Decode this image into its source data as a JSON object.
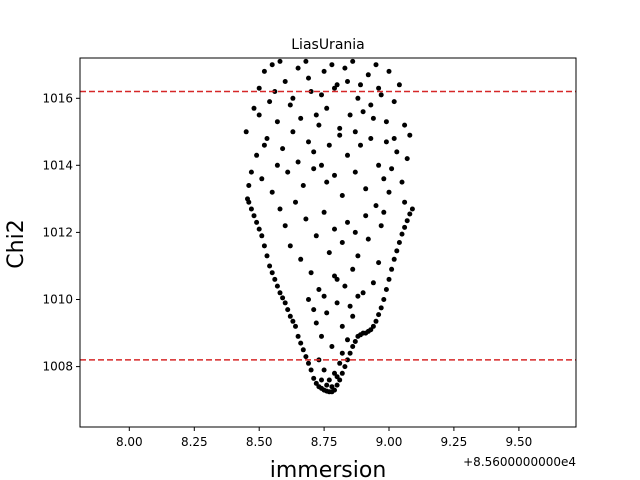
{
  "chart_data": {
    "type": "scatter",
    "title": "LiasUrania",
    "xlabel": "immersion",
    "ylabel": "Chi2",
    "x_offset_label": "+8.5600000000e4",
    "xlim": [
      7.81,
      9.72
    ],
    "ylim": [
      1006.2,
      1017.2
    ],
    "x_ticks": [
      8.0,
      8.25,
      8.5,
      8.75,
      9.0,
      9.25,
      9.5
    ],
    "x_tick_labels": [
      "8.00",
      "8.25",
      "8.50",
      "8.75",
      "9.00",
      "9.25",
      "9.50"
    ],
    "y_ticks": [
      1008,
      1010,
      1012,
      1014,
      1016
    ],
    "y_tick_labels": [
      "1008",
      "1010",
      "1012",
      "1014",
      "1016"
    ],
    "hlines": [
      {
        "y": 1008.2,
        "color": "#d62728",
        "style": "dashed"
      },
      {
        "y": 1016.2,
        "color": "#d62728",
        "style": "dashed"
      }
    ],
    "point_color": "#000000",
    "grid": false,
    "lower_envelope": [
      [
        8.45,
        1013.1
      ],
      [
        8.48,
        1012.5
      ],
      [
        8.52,
        1011.6
      ],
      [
        8.56,
        1010.6
      ],
      [
        8.6,
        1009.9
      ],
      [
        8.64,
        1009.2
      ],
      [
        8.68,
        1008.4
      ],
      [
        8.71,
        1007.6
      ],
      [
        8.74,
        1007.35
      ],
      [
        8.78,
        1007.25
      ],
      [
        8.81,
        1007.6
      ],
      [
        8.85,
        1008.4
      ],
      [
        8.88,
        1008.9
      ],
      [
        8.92,
        1009.0
      ],
      [
        8.95,
        1009.3
      ],
      [
        8.98,
        1010.0
      ],
      [
        9.01,
        1011.0
      ],
      [
        9.05,
        1012.0
      ],
      [
        9.09,
        1012.7
      ]
    ],
    "points": [
      [
        8.455,
        1013.0
      ],
      [
        8.46,
        1012.9
      ],
      [
        8.47,
        1012.7
      ],
      [
        8.48,
        1012.5
      ],
      [
        8.49,
        1012.3
      ],
      [
        8.5,
        1012.1
      ],
      [
        8.51,
        1011.9
      ],
      [
        8.52,
        1011.6
      ],
      [
        8.53,
        1011.3
      ],
      [
        8.54,
        1011.0
      ],
      [
        8.55,
        1010.8
      ],
      [
        8.56,
        1010.6
      ],
      [
        8.57,
        1010.4
      ],
      [
        8.58,
        1010.2
      ],
      [
        8.59,
        1010.05
      ],
      [
        8.6,
        1009.9
      ],
      [
        8.61,
        1009.7
      ],
      [
        8.62,
        1009.5
      ],
      [
        8.63,
        1009.35
      ],
      [
        8.64,
        1009.2
      ],
      [
        8.65,
        1008.9
      ],
      [
        8.66,
        1008.7
      ],
      [
        8.67,
        1008.5
      ],
      [
        8.68,
        1008.3
      ],
      [
        8.69,
        1008.1
      ],
      [
        8.7,
        1007.9
      ],
      [
        8.71,
        1007.65
      ],
      [
        8.72,
        1007.5
      ],
      [
        8.73,
        1007.4
      ],
      [
        8.74,
        1007.35
      ],
      [
        8.75,
        1007.3
      ],
      [
        8.76,
        1007.27
      ],
      [
        8.77,
        1007.25
      ],
      [
        8.78,
        1007.25
      ],
      [
        8.79,
        1007.3
      ],
      [
        8.8,
        1007.45
      ],
      [
        8.81,
        1007.6
      ],
      [
        8.82,
        1007.8
      ],
      [
        8.83,
        1008.0
      ],
      [
        8.84,
        1008.2
      ],
      [
        8.85,
        1008.4
      ],
      [
        8.86,
        1008.6
      ],
      [
        8.87,
        1008.75
      ],
      [
        8.88,
        1008.9
      ],
      [
        8.89,
        1008.95
      ],
      [
        8.9,
        1009.0
      ],
      [
        8.91,
        1009.0
      ],
      [
        8.92,
        1009.05
      ],
      [
        8.93,
        1009.1
      ],
      [
        8.94,
        1009.2
      ],
      [
        8.95,
        1009.35
      ],
      [
        8.96,
        1009.55
      ],
      [
        8.97,
        1009.75
      ],
      [
        8.98,
        1010.0
      ],
      [
        8.99,
        1010.3
      ],
      [
        9.0,
        1010.6
      ],
      [
        9.01,
        1010.9
      ],
      [
        9.02,
        1011.2
      ],
      [
        9.03,
        1011.45
      ],
      [
        9.04,
        1011.7
      ],
      [
        9.05,
        1011.95
      ],
      [
        9.06,
        1012.15
      ],
      [
        9.07,
        1012.35
      ],
      [
        9.08,
        1012.55
      ],
      [
        9.09,
        1012.7
      ],
      [
        8.46,
        1013.4
      ],
      [
        8.47,
        1013.8
      ],
      [
        8.45,
        1015.0
      ],
      [
        8.48,
        1015.7
      ],
      [
        8.5,
        1016.3
      ],
      [
        8.52,
        1016.8
      ],
      [
        8.55,
        1017.0
      ],
      [
        8.58,
        1017.1
      ],
      [
        8.6,
        1016.5
      ],
      [
        8.62,
        1015.8
      ],
      [
        8.65,
        1016.9
      ],
      [
        8.68,
        1017.1
      ],
      [
        8.7,
        1016.2
      ],
      [
        8.72,
        1015.5
      ],
      [
        8.75,
        1016.8
      ],
      [
        8.78,
        1017.0
      ],
      [
        8.8,
        1016.4
      ],
      [
        8.83,
        1016.9
      ],
      [
        8.86,
        1017.1
      ],
      [
        8.88,
        1016.0
      ],
      [
        8.9,
        1015.6
      ],
      [
        8.92,
        1016.7
      ],
      [
        8.95,
        1017.0
      ],
      [
        8.97,
        1016.1
      ],
      [
        9.0,
        1016.8
      ],
      [
        9.02,
        1015.9
      ],
      [
        9.04,
        1016.4
      ],
      [
        9.06,
        1015.2
      ],
      [
        9.08,
        1014.9
      ],
      [
        9.07,
        1014.2
      ],
      [
        8.49,
        1014.3
      ],
      [
        8.51,
        1013.6
      ],
      [
        8.53,
        1014.8
      ],
      [
        8.55,
        1013.2
      ],
      [
        8.57,
        1015.3
      ],
      [
        8.59,
        1014.5
      ],
      [
        8.61,
        1013.8
      ],
      [
        8.63,
        1015.0
      ],
      [
        8.65,
        1014.1
      ],
      [
        8.67,
        1013.4
      ],
      [
        8.69,
        1014.7
      ],
      [
        8.71,
        1013.9
      ],
      [
        8.73,
        1015.2
      ],
      [
        8.74,
        1014.0
      ],
      [
        8.76,
        1013.5
      ],
      [
        8.77,
        1014.6
      ],
      [
        8.79,
        1013.7
      ],
      [
        8.81,
        1014.9
      ],
      [
        8.82,
        1013.1
      ],
      [
        8.84,
        1014.3
      ],
      [
        8.85,
        1015.5
      ],
      [
        8.87,
        1013.8
      ],
      [
        8.89,
        1014.6
      ],
      [
        8.91,
        1013.3
      ],
      [
        8.93,
        1014.8
      ],
      [
        8.94,
        1015.4
      ],
      [
        8.96,
        1014.0
      ],
      [
        8.98,
        1013.6
      ],
      [
        8.99,
        1014.7
      ],
      [
        9.01,
        1013.9
      ],
      [
        9.03,
        1014.4
      ],
      [
        9.05,
        1013.5
      ],
      [
        9.06,
        1012.9
      ],
      [
        8.98,
        1012.6
      ],
      [
        9.0,
        1013.2
      ],
      [
        8.58,
        1012.7
      ],
      [
        8.6,
        1012.2
      ],
      [
        8.62,
        1011.6
      ],
      [
        8.64,
        1012.9
      ],
      [
        8.66,
        1011.2
      ],
      [
        8.68,
        1012.4
      ],
      [
        8.7,
        1010.8
      ],
      [
        8.72,
        1011.9
      ],
      [
        8.73,
        1010.3
      ],
      [
        8.75,
        1012.6
      ],
      [
        8.77,
        1011.4
      ],
      [
        8.79,
        1012.1
      ],
      [
        8.8,
        1010.6
      ],
      [
        8.82,
        1011.7
      ],
      [
        8.84,
        1012.3
      ],
      [
        8.86,
        1010.9
      ],
      [
        8.88,
        1011.3
      ],
      [
        8.9,
        1010.2
      ],
      [
        8.92,
        1011.8
      ],
      [
        8.94,
        1010.5
      ],
      [
        8.96,
        1011.1
      ],
      [
        8.97,
        1012.2
      ],
      [
        8.95,
        1012.8
      ],
      [
        8.91,
        1012.5
      ],
      [
        8.87,
        1012.0
      ],
      [
        8.69,
        1010.0
      ],
      [
        8.72,
        1009.3
      ],
      [
        8.74,
        1008.9
      ],
      [
        8.76,
        1009.6
      ],
      [
        8.78,
        1008.6
      ],
      [
        8.8,
        1009.9
      ],
      [
        8.82,
        1009.2
      ],
      [
        8.84,
        1008.8
      ],
      [
        8.86,
        1009.5
      ],
      [
        8.88,
        1010.1
      ],
      [
        8.83,
        1010.4
      ],
      [
        8.79,
        1010.7
      ],
      [
        8.75,
        1010.1
      ],
      [
        8.71,
        1009.7
      ],
      [
        8.85,
        1009.8
      ],
      [
        8.73,
        1008.2
      ],
      [
        8.75,
        1007.9
      ],
      [
        8.77,
        1007.6
      ],
      [
        8.79,
        1007.8
      ],
      [
        8.81,
        1008.1
      ],
      [
        8.74,
        1007.6
      ],
      [
        8.76,
        1007.45
      ],
      [
        8.78,
        1007.4
      ],
      [
        8.8,
        1007.7
      ],
      [
        8.82,
        1008.4
      ],
      [
        8.63,
        1016.0
      ],
      [
        8.66,
        1015.4
      ],
      [
        8.69,
        1016.6
      ],
      [
        8.71,
        1014.4
      ],
      [
        8.74,
        1016.1
      ],
      [
        8.76,
        1015.7
      ],
      [
        8.79,
        1016.3
      ],
      [
        8.81,
        1015.1
      ],
      [
        8.84,
        1016.5
      ],
      [
        8.87,
        1015.0
      ],
      [
        8.89,
        1016.4
      ],
      [
        8.93,
        1015.8
      ],
      [
        8.96,
        1016.3
      ],
      [
        8.99,
        1015.3
      ],
      [
        9.02,
        1014.8
      ],
      [
        8.54,
        1015.9
      ],
      [
        8.56,
        1016.2
      ],
      [
        8.5,
        1015.5
      ],
      [
        8.52,
        1014.6
      ],
      [
        8.57,
        1014.0
      ]
    ]
  }
}
